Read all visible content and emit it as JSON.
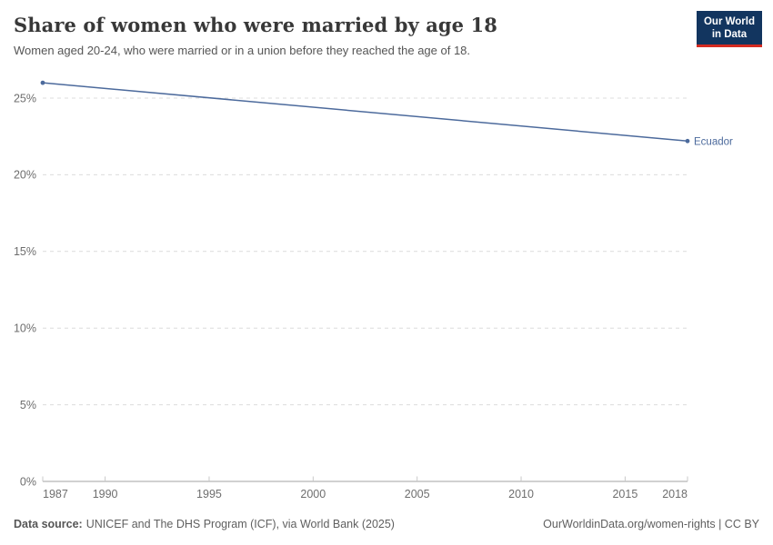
{
  "header": {
    "title": "Share of women who were married by age 18",
    "subtitle": "Women aged 20-24, who were married or in a union before they reached the age of 18."
  },
  "logo": {
    "line1": "Our World",
    "line2": "in Data"
  },
  "chart_data": {
    "type": "line",
    "title": "Share of women who were married by age 18",
    "xlabel": "",
    "ylabel": "",
    "xlim": [
      1987,
      2018
    ],
    "ylim": [
      0,
      26.5
    ],
    "grid": "dashed-horizontal",
    "legend": "inline-end-label",
    "x_ticks": [
      {
        "value": 1987,
        "label": "1987"
      },
      {
        "value": 1990,
        "label": "1990"
      },
      {
        "value": 1995,
        "label": "1995"
      },
      {
        "value": 2000,
        "label": "2000"
      },
      {
        "value": 2005,
        "label": "2005"
      },
      {
        "value": 2010,
        "label": "2010"
      },
      {
        "value": 2015,
        "label": "2015"
      },
      {
        "value": 2018,
        "label": "2018"
      }
    ],
    "y_ticks": [
      {
        "value": 0,
        "label": "0%"
      },
      {
        "value": 5,
        "label": "5%"
      },
      {
        "value": 10,
        "label": "10%"
      },
      {
        "value": 15,
        "label": "15%"
      },
      {
        "value": 20,
        "label": "20%"
      },
      {
        "value": 25,
        "label": "25%"
      }
    ],
    "series": [
      {
        "name": "Ecuador",
        "color": "#4c6a9c",
        "points": [
          {
            "year": 1987,
            "value": 26.0
          },
          {
            "year": 2018,
            "value": 22.2
          }
        ]
      }
    ]
  },
  "footer": {
    "datasource_label": "Data source:",
    "datasource_value": "UNICEF and The DHS Program (ICF), via World Bank (2025)",
    "credit": "OurWorldinData.org/women-rights | CC BY"
  },
  "colors": {
    "line": "#4c6a9c",
    "logo_bg": "#12355f",
    "logo_accent": "#d42b21",
    "gridline": "#dcdcdc",
    "axis_line": "#a3a3a3",
    "tick": "#c8c8c8",
    "axis_text": "#6e6e6e"
  }
}
